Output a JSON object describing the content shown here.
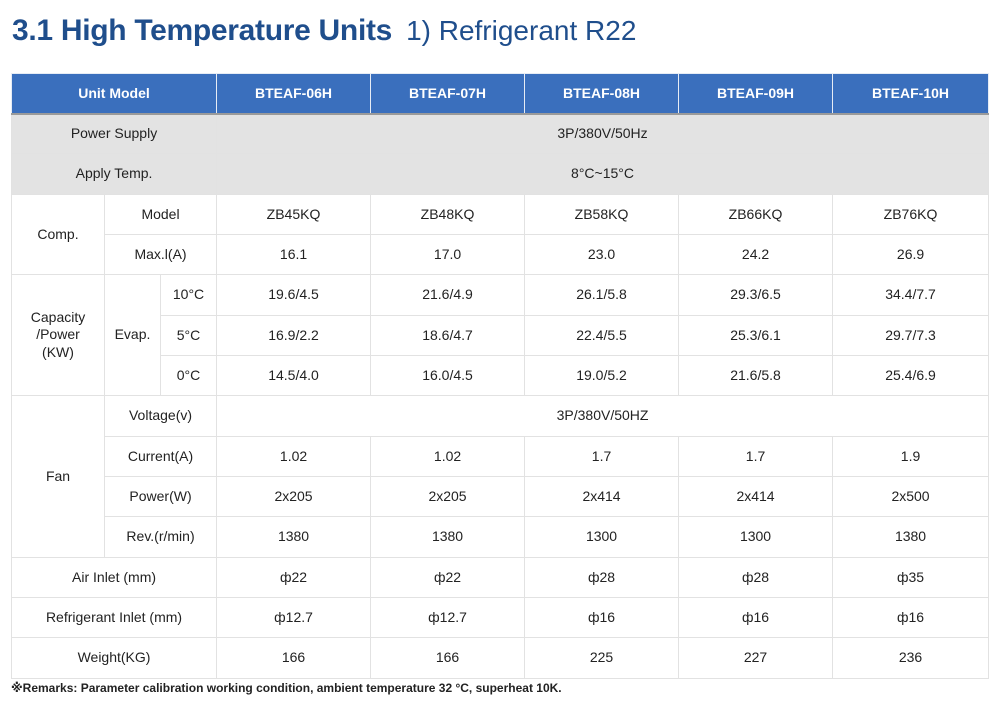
{
  "title": {
    "main": "3.1 High Temperature Units",
    "sub": "1) Refrigerant R22"
  },
  "header": {
    "unit_model": "Unit Model",
    "models": [
      "BTEAF-06H",
      "BTEAF-07H",
      "BTEAF-08H",
      "BTEAF-09H",
      "BTEAF-10H"
    ]
  },
  "power_supply": {
    "label": "Power Supply",
    "value": "3P/380V/50Hz"
  },
  "apply_temp": {
    "label": "Apply Temp.",
    "value": "8°C~15°C"
  },
  "comp": {
    "label": "Comp.",
    "model": {
      "label": "Model",
      "values": [
        "ZB45KQ",
        "ZB48KQ",
        "ZB58KQ",
        "ZB66KQ",
        "ZB76KQ"
      ]
    },
    "max_current": {
      "label": "Max.l(A)",
      "values": [
        "16.1",
        "17.0",
        "23.0",
        "24.2",
        "26.9"
      ]
    }
  },
  "capacity": {
    "label_lines": [
      "Capacity",
      "/Power",
      "(KW)"
    ],
    "evap_label": "Evap.",
    "rows": [
      {
        "temp": "10°C",
        "values": [
          "19.6/4.5",
          "21.6/4.9",
          "26.1/5.8",
          "29.3/6.5",
          "34.4/7.7"
        ]
      },
      {
        "temp": "5°C",
        "values": [
          "16.9/2.2",
          "18.6/4.7",
          "22.4/5.5",
          "25.3/6.1",
          "29.7/7.3"
        ]
      },
      {
        "temp": "0°C",
        "values": [
          "14.5/4.0",
          "16.0/4.5",
          "19.0/5.2",
          "21.6/5.8",
          "25.4/6.9"
        ]
      }
    ]
  },
  "fan": {
    "label": "Fan",
    "voltage": {
      "label": "Voltage(v)",
      "value": "3P/380V/50HZ"
    },
    "current": {
      "label": "Current(A)",
      "values": [
        "1.02",
        "1.02",
        "1.7",
        "1.7",
        "1.9"
      ]
    },
    "power": {
      "label": "Power(W)",
      "values": [
        "2x205",
        "2x205",
        "2x414",
        "2x414",
        "2x500"
      ]
    },
    "rev": {
      "label": "Rev.(r/min)",
      "values": [
        "1380",
        "1380",
        "1300",
        "1300",
        "1380"
      ]
    }
  },
  "air_inlet": {
    "label": "Air Inlet (mm)",
    "values": [
      "ф22",
      "ф22",
      "ф28",
      "ф28",
      "ф35"
    ]
  },
  "refrigerant_inlet": {
    "label": "Refrigerant Inlet (mm)",
    "values": [
      "ф12.7",
      "ф12.7",
      "ф16",
      "ф16",
      "ф16"
    ]
  },
  "weight": {
    "label": "Weight(KG)",
    "values": [
      "166",
      "166",
      "225",
      "227",
      "236"
    ]
  },
  "remarks": "※Remarks: Parameter calibration working condition, ambient temperature 32 °C, superheat 10K.",
  "colors": {
    "header_bg": "#3a6fbd",
    "title": "#1f4e8c",
    "grey_cell": "#e3e3e3"
  }
}
